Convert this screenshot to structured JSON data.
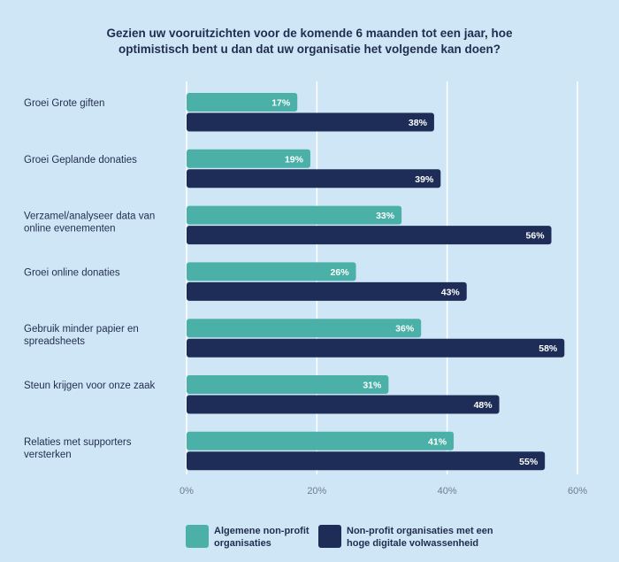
{
  "chart_data": {
    "type": "bar",
    "orientation": "horizontal",
    "title": "Gezien uw vooruitzichten voor de komende 6 maanden tot een jaar, hoe optimistisch bent u dan dat uw organisatie het volgende kan doen?",
    "title_lines": [
      "Gezien uw vooruitzichten voor de komende 6 maanden tot een jaar, hoe",
      "optimistisch bent u dan dat uw organisatie het volgende kan doen?"
    ],
    "categories": [
      "Groei Grote giften",
      "Groei Geplande donaties",
      "Verzamel/analyseer data van online evenementen",
      "Groei online donaties",
      "Gebruik minder papier en spreadsheets",
      "Steun krijgen voor onze zaak",
      "Relaties met supporters versterken"
    ],
    "category_lines": [
      [
        "Groei Grote giften"
      ],
      [
        "Groei Geplande donaties"
      ],
      [
        "Verzamel/analyseer data van",
        "online evenementen"
      ],
      [
        "Groei online donaties"
      ],
      [
        "Gebruik minder papier en",
        "spreadsheets"
      ],
      [
        "Steun krijgen voor onze zaak"
      ],
      [
        "Relaties met supporters",
        "versterken"
      ]
    ],
    "series": [
      {
        "name": "Algemene non-profit organisaties",
        "name_lines": [
          "Algemene non-profit",
          "organisaties"
        ],
        "color": "#4ab0a8",
        "values": [
          17,
          19,
          33,
          26,
          36,
          31,
          41
        ]
      },
      {
        "name": "Non-profit organisaties met een hoge digitale volwassenheid",
        "name_lines": [
          "Non-profit organisaties met een",
          "hoge digitale volwassenheid"
        ],
        "color": "#1e2d57",
        "values": [
          38,
          39,
          56,
          43,
          58,
          48,
          55
        ]
      }
    ],
    "value_suffix": "%",
    "xlim": [
      0,
      60
    ],
    "xticks": [
      0,
      20,
      40,
      60
    ],
    "xtick_labels": [
      "0%",
      "20%",
      "40%",
      "60%"
    ],
    "grid": true,
    "legend_position": "bottom"
  }
}
